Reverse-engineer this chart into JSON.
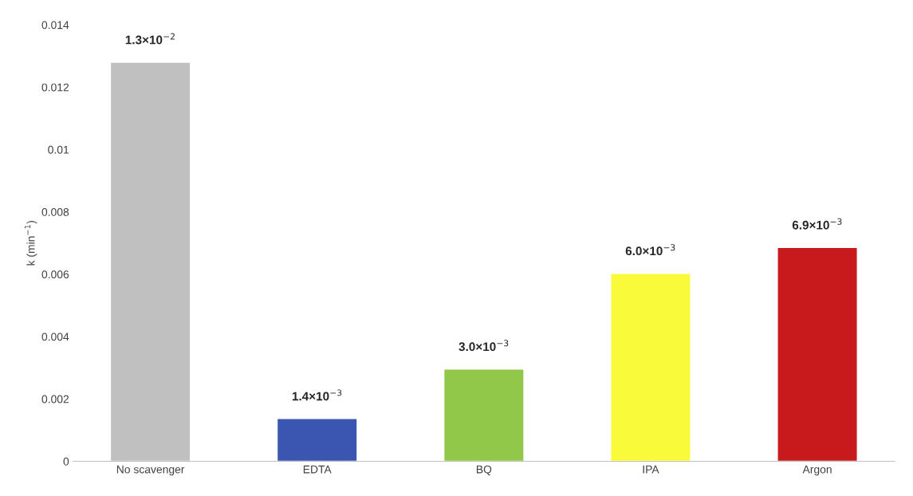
{
  "chart_data": {
    "type": "bar",
    "ylabel": "k (min$^{−1}$)",
    "categories": [
      "No scavenger",
      "EDTA",
      "BQ",
      "IPA",
      "Argon"
    ],
    "values": [
      0.0128,
      0.00137,
      0.00296,
      0.00603,
      0.00686
    ],
    "colors": [
      "#c0c0c0",
      "#3a56b0",
      "#92c84a",
      "#f9fb3a",
      "#c8191c"
    ],
    "value_labels": [
      "1.3×10$^{−2}$",
      "1.4×10$^{−3}$",
      "3.0×10$^{−3}$",
      "6.0×10$^{−3}$",
      "6.9×10$^{−3}$"
    ],
    "ylim": [
      0,
      0.014
    ],
    "yticks": [
      0,
      0.002,
      0.004,
      0.006,
      0.008,
      {
        "value": 0.01,
        "label": "0.01"
      },
      0.012,
      0.014
    ],
    "grid": false,
    "legend": false
  }
}
